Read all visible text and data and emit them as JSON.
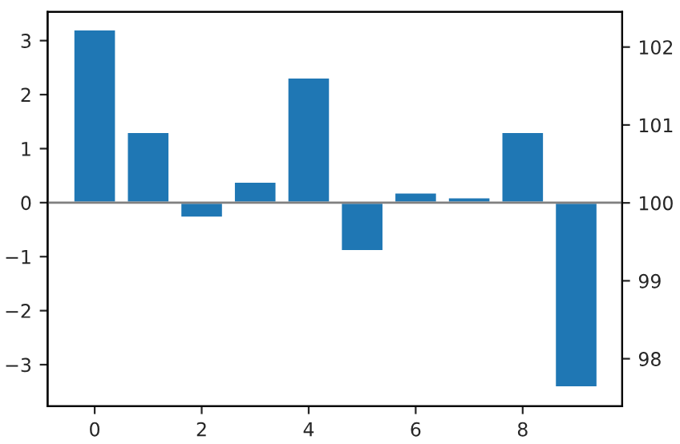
{
  "chart_data": {
    "type": "bar",
    "x": [
      0,
      1,
      2,
      3,
      4,
      5,
      6,
      7,
      8,
      9
    ],
    "series": [
      {
        "color": "#1f77b4",
        "values": [
          3.21,
          1.31,
          -0.28,
          0.39,
          2.32,
          -0.9,
          0.19,
          0.1,
          1.31,
          -3.42
        ]
      }
    ],
    "xlim": [
      -0.88,
      9.86
    ],
    "xticks": [
      0,
      2,
      4,
      6,
      8
    ],
    "ylim": [
      -3.77,
      3.53
    ],
    "yticks": [
      {
        "value": -3,
        "label": "−3"
      },
      {
        "value": -2,
        "label": "−2"
      },
      {
        "value": -1,
        "label": "−1"
      },
      0,
      1,
      2,
      3
    ],
    "y2lim": [
      97.39,
      102.45
    ],
    "y2ticks": [
      98,
      99,
      100,
      101,
      102
    ],
    "ref_lines": [
      {
        "axis": "y",
        "value": 0,
        "color": "#808080"
      }
    ],
    "grid": false,
    "legend": false
  }
}
